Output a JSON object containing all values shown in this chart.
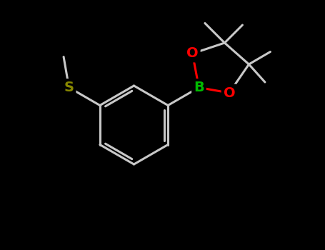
{
  "background_color": "#000000",
  "bond_color": "#c8c8c8",
  "atom_B_color": "#00bb00",
  "atom_O_color": "#ff0000",
  "atom_S_color": "#888800",
  "figsize": [
    4.55,
    3.5
  ],
  "dpi": 100,
  "xlim": [
    -3.5,
    4.5
  ],
  "ylim": [
    -3.5,
    3.5
  ]
}
